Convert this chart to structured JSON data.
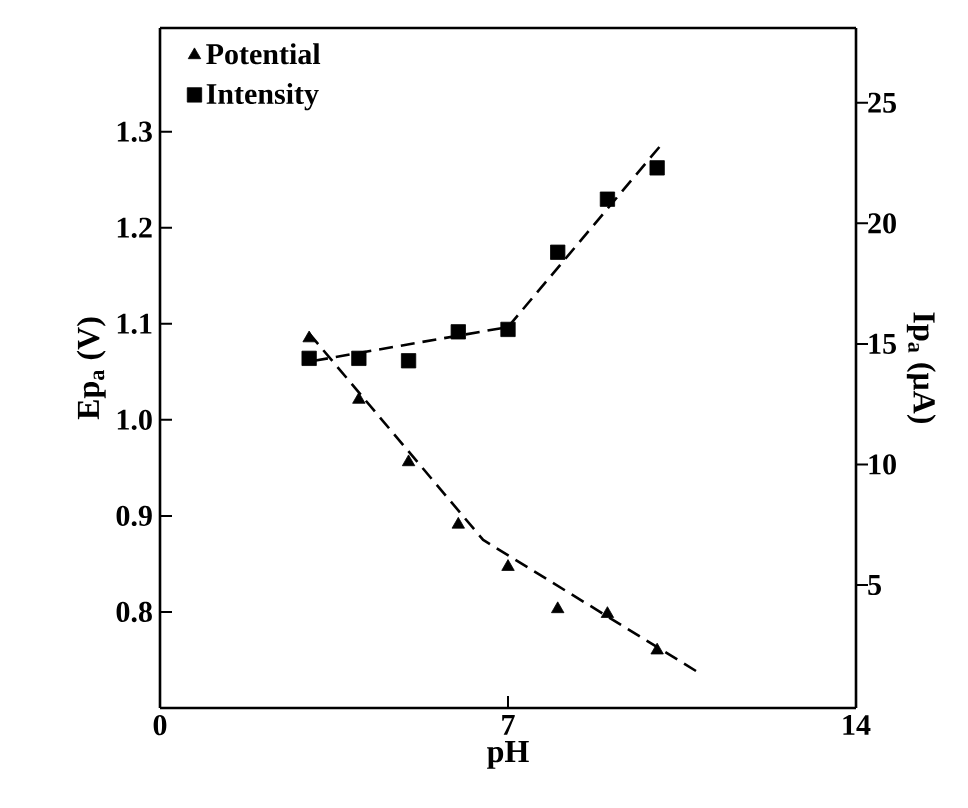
{
  "chart_data": {
    "type": "scatter",
    "xlabel": "pH",
    "ylabel": "Ep$_{a}$ (V)",
    "y2label": "Ip$_{a}$ (μA)",
    "xlim": [
      0,
      14
    ],
    "xticks": [
      0,
      7,
      14
    ],
    "ylim": [
      0.7,
      1.408
    ],
    "yticks": [
      0.8,
      0.9,
      {
        "value": 1.0,
        "label": "1.0"
      },
      1.1,
      1.2,
      1.3
    ],
    "y2lim": [
      -0.1,
      28.1
    ],
    "y2ticks": [
      5,
      10,
      15,
      20,
      25
    ],
    "legend": "top left",
    "grid": false,
    "series": [
      {
        "name": "Potential",
        "marker": "triangle",
        "color": "#000000",
        "x": [
          3,
          4,
          5,
          6,
          7,
          8,
          9,
          10
        ],
        "values": [
          1.085,
          1.021,
          0.956,
          0.891,
          0.847,
          0.803,
          0.798,
          0.76
        ]
      },
      {
        "name": "Intensity",
        "marker": "square",
        "color": "#000000",
        "axis": "y2",
        "x": [
          3,
          4,
          5,
          6,
          7,
          8,
          9,
          10
        ],
        "values": [
          14.4,
          14.4,
          14.3,
          15.5,
          15.6,
          18.8,
          21.0,
          22.3
        ]
      },
      {
        "type": "line",
        "line_style": "dashed",
        "marker": "none",
        "color": "#000000",
        "x": [
          3,
          6.5,
          10.86
        ],
        "values": [
          1.09,
          0.875,
          0.736
        ]
      },
      {
        "type": "line",
        "line_style": "dashed",
        "marker": "none",
        "color": "#000000",
        "axis": "y2",
        "x": [
          3.1,
          7,
          10.1
        ],
        "values": [
          14.3,
          15.7,
          23.3
        ]
      }
    ]
  }
}
